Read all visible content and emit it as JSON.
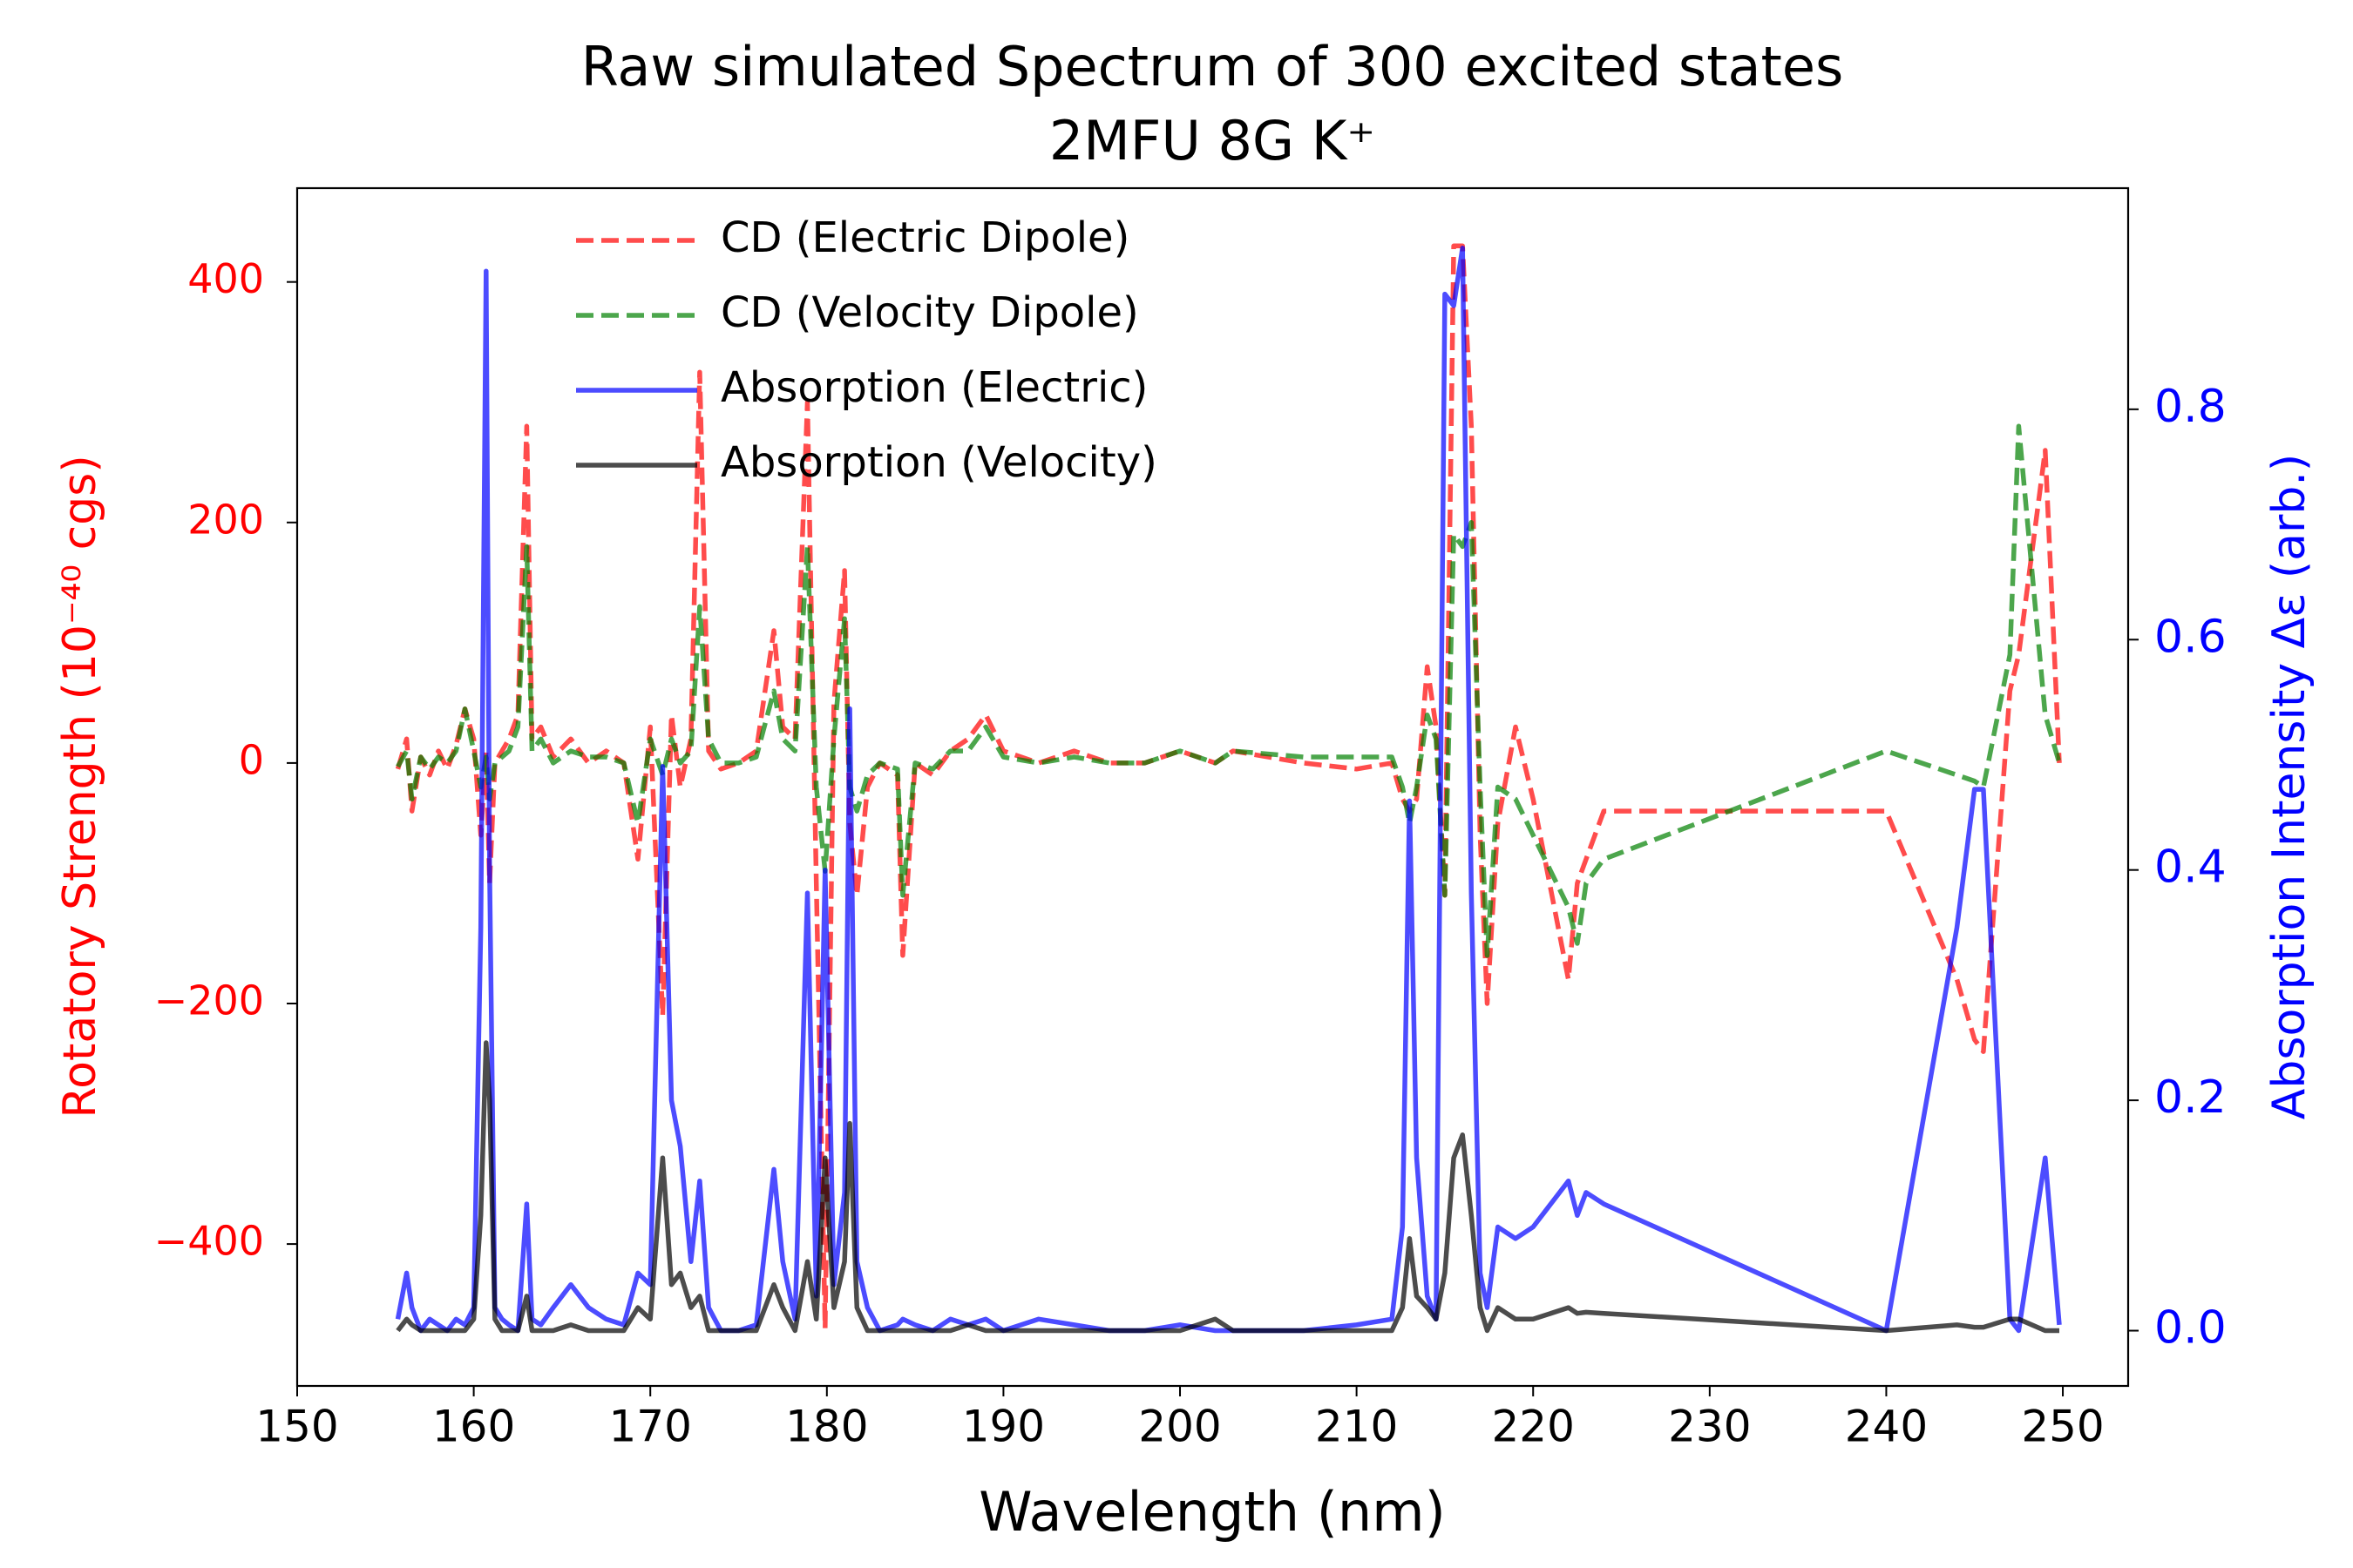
{
  "chart_data": {
    "type": "line",
    "title": "Raw simulated Spectrum of 300 excited states",
    "subtitle": "2MFU 8G K⁺",
    "xlabel": "Wavelength (nm)",
    "ylabel": "Rotatory Strength (10⁻⁴⁰ cgs)",
    "y2label": "Absorption Intensity Δε (arb.)",
    "y_axis_color": "#ff0000",
    "y2_axis_color": "#0000ff",
    "legend": "upper center",
    "grid": false,
    "xlim": [
      150,
      253.7
    ],
    "xticks": [
      150,
      160,
      170,
      180,
      190,
      200,
      210,
      220,
      230,
      240,
      250
    ],
    "ylim": [
      -518,
      478
    ],
    "yticks": [
      {
        "value": -400,
        "label": "−400"
      },
      {
        "value": -200,
        "label": "−200"
      },
      0,
      200,
      400
    ],
    "y2lim": [
      -0.048,
      0.992
    ],
    "y2ticks": [
      {
        "value": 0,
        "label": "0.0"
      },
      0.2,
      0.4,
      0.6,
      0.8
    ],
    "x": [
      155.7,
      156.2,
      156.5,
      157,
      157.5,
      158,
      158.5,
      159,
      159.5,
      160,
      160.4,
      160.7,
      160.9,
      161.2,
      161.6,
      162,
      162.5,
      163,
      163.3,
      163.8,
      164.5,
      165.5,
      166.5,
      167.5,
      168.5,
      169.3,
      170,
      170.7,
      171.2,
      171.7,
      172.3,
      172.8,
      173.3,
      174,
      175,
      176,
      177,
      177.5,
      178.2,
      178.9,
      179.4,
      179.9,
      180.4,
      181,
      181.3,
      181.7,
      182.3,
      183,
      184,
      184.3,
      185,
      186,
      187,
      188,
      189,
      190,
      192,
      194,
      196,
      198,
      200,
      202,
      203,
      207,
      210,
      212,
      212.6,
      213,
      213.4,
      214,
      214.5,
      215,
      215.5,
      216,
      216.5,
      217,
      217.4,
      218,
      219,
      220,
      222,
      222.5,
      223,
      224,
      240,
      244,
      245,
      245.5,
      247,
      247.5,
      249,
      249.8
    ],
    "series": [
      {
        "name": "CD (Electric Dipole)",
        "color": "#ff0000",
        "linestyle": "dashed",
        "axis": "y",
        "values": [
          -5,
          20,
          -40,
          5,
          -10,
          10,
          -5,
          15,
          45,
          20,
          -60,
          10,
          -100,
          0,
          10,
          20,
          40,
          280,
          20,
          30,
          5,
          20,
          0,
          10,
          0,
          -80,
          30,
          -210,
          40,
          -20,
          20,
          325,
          10,
          -5,
          0,
          10,
          110,
          30,
          20,
          300,
          -100,
          -470,
          50,
          160,
          -50,
          -110,
          -20,
          0,
          -10,
          -160,
          0,
          -10,
          10,
          20,
          40,
          10,
          0,
          10,
          0,
          0,
          10,
          0,
          10,
          0,
          -5,
          0,
          -30,
          -40,
          -30,
          80,
          30,
          -110,
          430,
          430,
          280,
          -60,
          -200,
          -50,
          30,
          -30,
          -180,
          -100,
          -80,
          -40,
          -40,
          -180,
          -230,
          -240,
          60,
          90,
          260,
          0
        ]
      },
      {
        "name": "CD (Velocity Dipole)",
        "color": "#008000",
        "linestyle": "dashed",
        "axis": "y",
        "values": [
          -3,
          10,
          -30,
          5,
          -5,
          5,
          0,
          10,
          45,
          10,
          -20,
          5,
          -30,
          0,
          5,
          10,
          30,
          180,
          10,
          20,
          0,
          10,
          5,
          5,
          0,
          -50,
          20,
          -10,
          20,
          0,
          10,
          130,
          20,
          0,
          0,
          5,
          60,
          20,
          10,
          180,
          -20,
          -90,
          20,
          120,
          -20,
          -40,
          -10,
          0,
          -5,
          -110,
          0,
          -5,
          10,
          10,
          30,
          5,
          0,
          5,
          0,
          0,
          10,
          0,
          10,
          5,
          5,
          5,
          -20,
          -50,
          -20,
          40,
          20,
          -110,
          190,
          180,
          200,
          -20,
          -160,
          -20,
          -30,
          -60,
          -120,
          -150,
          -100,
          -80,
          10,
          -10,
          -15,
          -20,
          90,
          280,
          40,
          0
        ]
      },
      {
        "name": "Absorption (Electric)",
        "color": "#0000ff",
        "linestyle": "solid",
        "axis": "y2",
        "values": [
          0.01,
          0.05,
          0.02,
          0,
          0.01,
          0.005,
          0,
          0.01,
          0.005,
          0.02,
          0.35,
          0.92,
          0.4,
          0.02,
          0.01,
          0.005,
          0,
          0.11,
          0.01,
          0.005,
          0.02,
          0.04,
          0.02,
          0.01,
          0.005,
          0.05,
          0.04,
          0.49,
          0.2,
          0.16,
          0.06,
          0.13,
          0.02,
          0,
          0,
          0.005,
          0.14,
          0.06,
          0.01,
          0.38,
          0.03,
          0.4,
          0.04,
          0.12,
          0.54,
          0.06,
          0.02,
          0,
          0.005,
          0.01,
          0.005,
          0,
          0.01,
          0.005,
          0.01,
          0,
          0.01,
          0.005,
          0,
          0,
          0.005,
          0,
          0,
          0,
          0.005,
          0.01,
          0.09,
          0.46,
          0.15,
          0.03,
          0.01,
          0.9,
          0.89,
          0.94,
          0.38,
          0.05,
          0.02,
          0.09,
          0.08,
          0.09,
          0.13,
          0.1,
          0.12,
          0.11,
          0,
          0.35,
          0.47,
          0.47,
          0.01,
          0,
          0.15,
          0.005
        ]
      },
      {
        "name": "Absorption (Velocity)",
        "color": "#000000",
        "linestyle": "solid",
        "axis": "y2",
        "values": [
          0,
          0.01,
          0.005,
          0,
          0,
          0,
          0,
          0,
          0,
          0.01,
          0.1,
          0.25,
          0.2,
          0.01,
          0,
          0,
          0,
          0.03,
          0,
          0,
          0,
          0.005,
          0,
          0,
          0,
          0.02,
          0.01,
          0.15,
          0.04,
          0.05,
          0.02,
          0.03,
          0,
          0,
          0,
          0,
          0.04,
          0.02,
          0,
          0.06,
          0.01,
          0.15,
          0.02,
          0.06,
          0.18,
          0.02,
          0,
          0,
          0,
          0,
          0,
          0,
          0,
          0.005,
          0,
          0,
          0,
          0,
          0,
          0,
          0,
          0.01,
          0,
          0,
          0,
          0,
          0.02,
          0.08,
          0.03,
          0.02,
          0.01,
          0.05,
          0.15,
          0.17,
          0.1,
          0.02,
          0,
          0.02,
          0.01,
          0.01,
          0.02,
          0.015,
          0.016,
          0.015,
          0,
          0.005,
          0.003,
          0.003,
          0.01,
          0.01,
          0,
          0
        ]
      }
    ]
  }
}
